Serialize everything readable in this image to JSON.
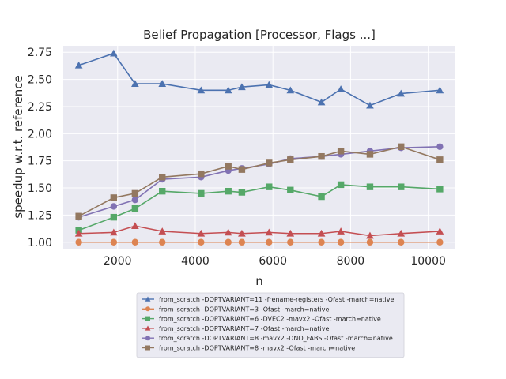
{
  "chart_data": {
    "type": "line",
    "title": "Belief Propagation [Processor, Flags ...]",
    "xlabel": "n",
    "ylabel": "speedup w.r.t. reference",
    "xlim": [
      600,
      10700
    ],
    "ylim": [
      0.94,
      2.81
    ],
    "xticks": [
      2000,
      4000,
      6000,
      8000,
      10000
    ],
    "yticks": [
      1.0,
      1.25,
      1.5,
      1.75,
      2.0,
      2.25,
      2.5,
      2.75
    ],
    "xtick_labels": [
      "2000",
      "4000",
      "6000",
      "8000",
      "10000"
    ],
    "ytick_labels": [
      "1.00",
      "1.25",
      "1.50",
      "1.75",
      "2.00",
      "2.25",
      "2.50",
      "2.75"
    ],
    "grid": true,
    "legend_position": "below",
    "x": [
      1000,
      1900,
      2450,
      3150,
      4150,
      4850,
      5200,
      5900,
      6450,
      7250,
      7750,
      8500,
      9300,
      10300
    ],
    "series": [
      {
        "name": "from_scratch -DOPTVARIANT=11 -frename-registers -Ofast -march=native",
        "color": "#4c72b0",
        "marker": "triangle",
        "values": [
          2.63,
          2.74,
          2.46,
          2.46,
          2.4,
          2.4,
          2.43,
          2.45,
          2.4,
          2.29,
          2.41,
          2.26,
          2.37,
          2.4
        ]
      },
      {
        "name": "from_scratch -DOPTVARIANT=3 -Ofast -march=native",
        "color": "#dd8452",
        "marker": "circle",
        "values": [
          1.0,
          1.0,
          1.0,
          1.0,
          1.0,
          1.0,
          1.0,
          1.0,
          1.0,
          1.0,
          1.0,
          1.0,
          1.0,
          1.0
        ]
      },
      {
        "name": "from_scratch -DOPTVARIANT=6 -DVEC2 -mavx2 -Ofast -march=native",
        "color": "#55a868",
        "marker": "square",
        "values": [
          1.11,
          1.23,
          1.31,
          1.47,
          1.45,
          1.47,
          1.46,
          1.51,
          1.48,
          1.42,
          1.53,
          1.51,
          1.51,
          1.49
        ]
      },
      {
        "name": "from_scratch -DOPTVARIANT=7 -Ofast -march=native",
        "color": "#c44e52",
        "marker": "triangle",
        "values": [
          1.08,
          1.09,
          1.15,
          1.1,
          1.08,
          1.09,
          1.08,
          1.09,
          1.08,
          1.08,
          1.1,
          1.06,
          1.08,
          1.1
        ]
      },
      {
        "name": "from_scratch -DOPTVARIANT=8 -mavx2 -DNO_FABS -Ofast -march=native",
        "color": "#8172b3",
        "marker": "circle",
        "values": [
          1.23,
          1.33,
          1.39,
          1.58,
          1.6,
          1.66,
          1.68,
          1.72,
          1.77,
          1.79,
          1.81,
          1.84,
          1.87,
          1.88
        ]
      },
      {
        "name": "from_scratch -DOPTVARIANT=8 -mavx2 -Ofast -march=native",
        "color": "#937860",
        "marker": "square",
        "values": [
          1.24,
          1.41,
          1.45,
          1.6,
          1.63,
          1.7,
          1.67,
          1.73,
          1.76,
          1.79,
          1.84,
          1.81,
          1.88,
          1.76
        ]
      }
    ]
  }
}
